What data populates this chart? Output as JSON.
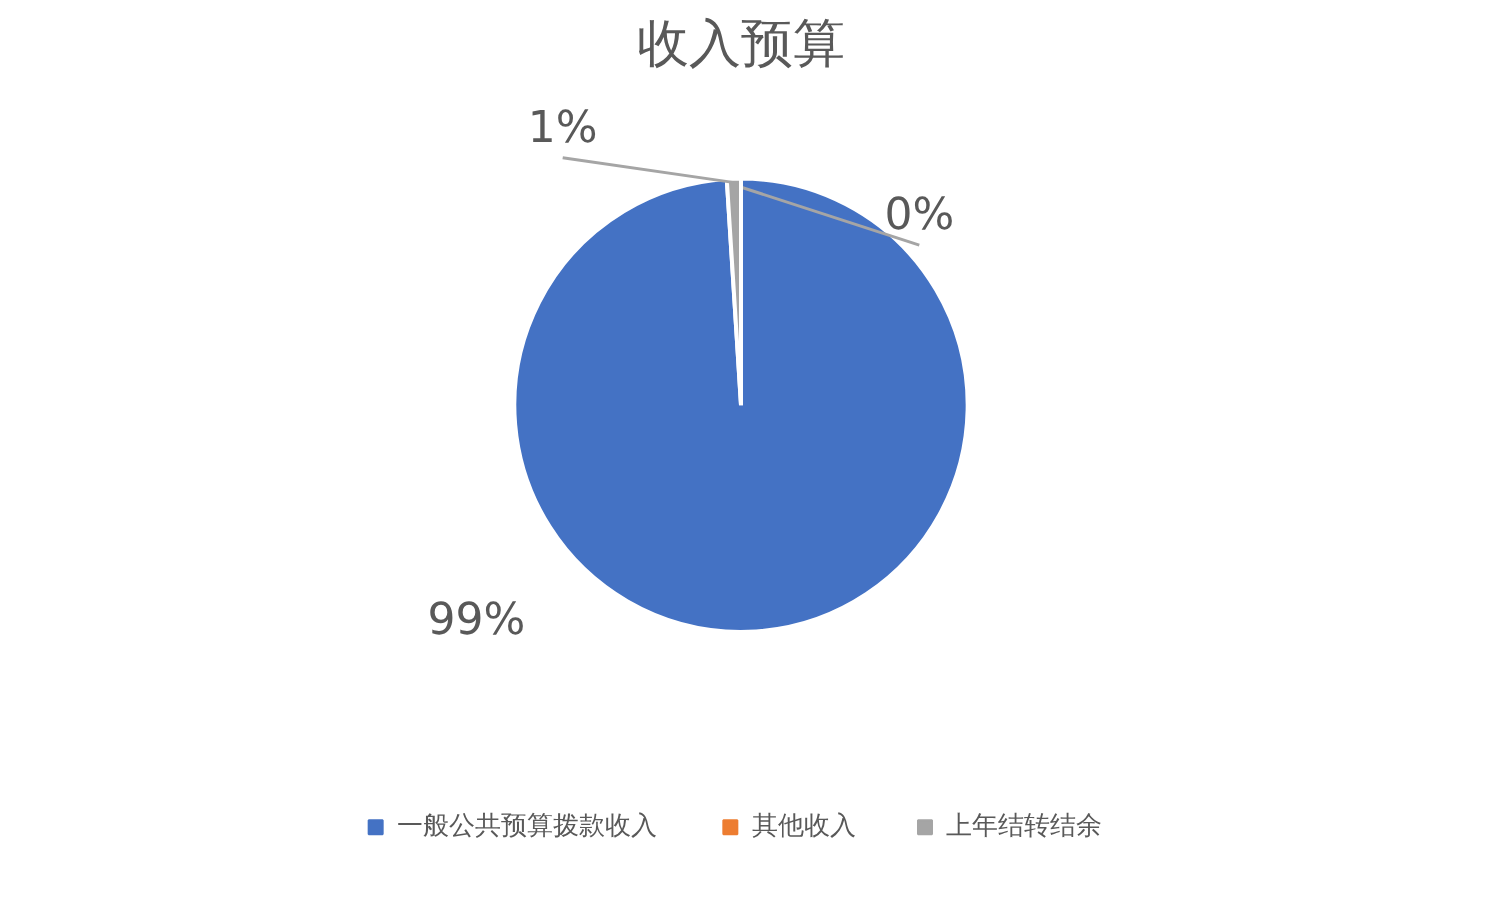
{
  "chart_data": {
    "type": "pie",
    "title": "收入预算",
    "categories": [
      "一般公共预算拨款收入",
      "其他收入",
      "上年结转结余"
    ],
    "values": [
      99,
      0,
      1
    ],
    "colors": [
      "#4472c4",
      "#ed7d31",
      "#a5a5a5"
    ],
    "value_labels": [
      "99%",
      "0%",
      "1%"
    ],
    "legend": "bottom"
  }
}
